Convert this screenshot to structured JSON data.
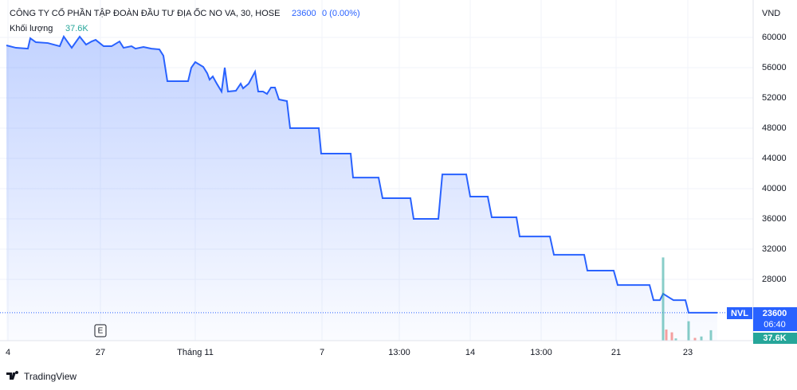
{
  "chart_data": {
    "type": "line",
    "title": "CÔNG TY CỔ PHẦN TẬP ĐOÀN ĐẦU TƯ ĐỊA ỐC NO VA, 30, HOSE",
    "change": "0 (0.00%)",
    "currency": "VND",
    "countdown": "06:40",
    "marker": "E",
    "brand": "TradingView",
    "grid": true,
    "xlim": [
      0,
      937
    ],
    "ylim": [
      19900,
      64950
    ],
    "volume_lim": [
      0,
      350000
    ],
    "xticks": [
      {
        "value": 2,
        "label": "4"
      },
      {
        "value": 118,
        "label": "27"
      },
      {
        "value": 237,
        "label": "Tháng 11"
      },
      {
        "value": 396,
        "label": "7"
      },
      {
        "value": 493,
        "label": "13:00"
      },
      {
        "value": 582,
        "label": "14"
      },
      {
        "value": 671,
        "label": "13:00"
      },
      {
        "value": 765,
        "label": "21"
      },
      {
        "value": 855,
        "label": "23"
      }
    ],
    "yticks": [
      28000,
      32000,
      36000,
      40000,
      44000,
      48000,
      52000,
      56000,
      60000
    ],
    "series": [
      {
        "name": "NVL",
        "color": "#2962ff",
        "x": [
          0,
          12,
          27,
          30,
          37,
          52,
          67,
          72,
          82,
          87,
          92,
          100,
          107,
          112,
          122,
          132,
          142,
          147,
          157,
          162,
          172,
          182,
          192,
          197,
          202,
          228,
          232,
          237,
          247,
          252,
          255,
          259,
          264,
          270,
          274,
          278,
          288,
          294,
          297,
          304,
          312,
          316,
          322,
          327,
          332,
          337,
          342,
          352,
          356,
          392,
          395,
          432,
          435,
          467,
          472,
          507,
          511,
          542,
          547,
          577,
          582,
          604,
          609,
          640,
          644,
          682,
          687,
          725,
          729,
          762,
          767,
          807,
          812,
          820,
          824,
          832,
          837,
          852,
          856,
          892
        ],
        "values": [
          58950,
          58630,
          58520,
          59890,
          59370,
          59260,
          58840,
          60110,
          58630,
          59370,
          60110,
          59050,
          59470,
          59680,
          58840,
          58840,
          59470,
          58630,
          58840,
          58520,
          58740,
          58520,
          58420,
          57580,
          54210,
          54210,
          56000,
          56740,
          56110,
          55260,
          54420,
          54840,
          53890,
          52840,
          56000,
          52840,
          52950,
          53890,
          53260,
          53890,
          55470,
          52840,
          52840,
          52530,
          53370,
          53370,
          51790,
          51580,
          48000,
          48000,
          44630,
          44630,
          41470,
          41470,
          38740,
          38740,
          36000,
          36000,
          41890,
          41890,
          38950,
          38950,
          36210,
          36210,
          33680,
          33680,
          31260,
          31260,
          29160,
          29160,
          27260,
          27260,
          25260,
          25260,
          26110,
          25580,
          25260,
          25260,
          23600,
          23600
        ]
      },
      {
        "name": "Khối lượng",
        "axis": "volume",
        "colors": [
          "#26a69a",
          "#ef5350",
          "#ef5350",
          "#26a69a",
          "#26a69a",
          "#ef5350",
          "#26a69a",
          "#26a69a"
        ],
        "x": [
          824,
          828,
          835,
          840,
          856,
          864,
          872,
          884
        ],
        "values": [
          300000,
          40000,
          30000,
          8000,
          70000,
          10000,
          15000,
          37600
        ],
        "value_labels": [
          null,
          null,
          null,
          null,
          null,
          null,
          null,
          "37.6K"
        ]
      }
    ]
  }
}
